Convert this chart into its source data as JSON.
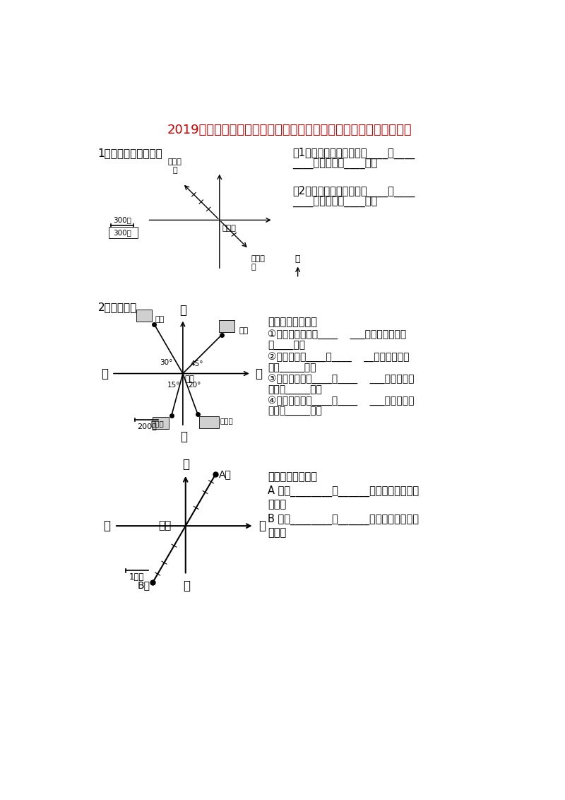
{
  "title": "2019年六年级数学上册位置与方向同步知识点强化复习题含答案解析",
  "title_color": "#CC0000",
  "bg_color": "#FFFFFF",
  "section1_label": "1、量一量，说一说。",
  "section2_label": "2、看图填空",
  "q1_text1": "（1）实验小学在少年宫的____偏____",
  "q1_text2": "____方向，距离____米；",
  "q2_text1": "（2）百货大楼在少年宫的____偏____",
  "q2_text2": "____方向，距离____米；",
  "scale_label": "300米",
  "school_label": "实验小\n学",
  "palace_label": "少年宫",
  "store_label": "百货大\n楼",
  "q3_text": "以学校为观测点：",
  "q3_1": "①邮局在学校北偏____    ___的方向上，距离",
  "q3_1b": "是____米。",
  "q3_2": "②书店在学校____偏____    __的方向上，距",
  "q3_2b": "离是_____米。",
  "q3_3": "③图书馆在学校____偏____    ___的方向上，",
  "q3_3b": "距离是_____米。",
  "q3_4": "④电影院在学校____偏____    ___的方向上，",
  "q3_4b": "距离是_____米。",
  "q4_text": "以渔船为观察点：",
  "q4_1": "A 岛在________偏______的方向上，距离是",
  "q4_1b": "千米；",
  "q4_2": "B 岛在________偏______的方向上，距离是",
  "q4_2b": "千米。"
}
